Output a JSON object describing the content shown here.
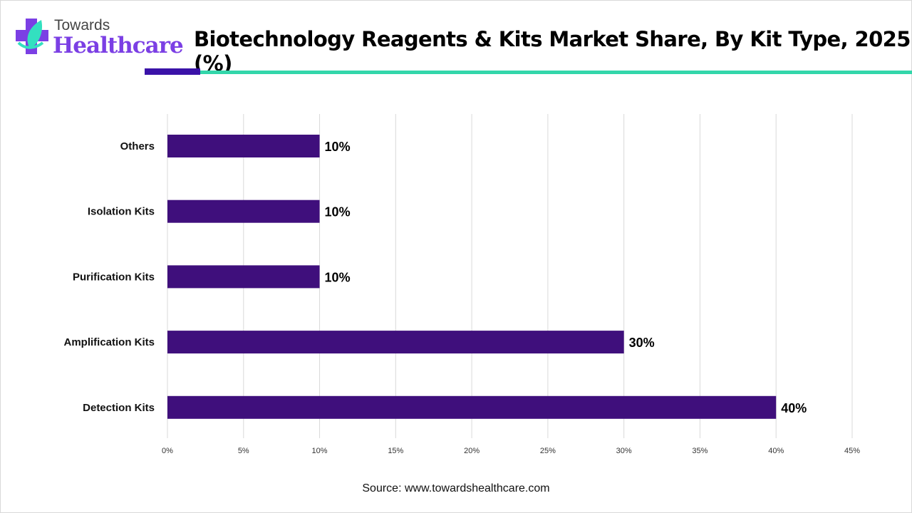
{
  "logo": {
    "line1": "Towards",
    "line2": "Healthcare"
  },
  "header": {
    "title": "Biotechnology Reagents & Kits Market Share, By Kit Type, 2025 (%)"
  },
  "source": "Source: www.towardshealthcare.com",
  "colors": {
    "bar": "#3f0f7c",
    "accent_dark": "#3a12a8",
    "accent_teal": "#33d6aa",
    "grid": "#d9d9d9"
  },
  "chart_data": {
    "type": "bar",
    "orientation": "horizontal",
    "title": "Biotechnology Reagents & Kits Market Share, By Kit Type, 2025 (%)",
    "categories": [
      "Others",
      "Isolation Kits",
      "Purification Kits",
      "Amplification Kits",
      "Detection Kits"
    ],
    "values": [
      10,
      10,
      10,
      30,
      40
    ],
    "data_labels": [
      "10%",
      "10%",
      "10%",
      "30%",
      "40%"
    ],
    "xlim": [
      0,
      45
    ],
    "xticks": [
      "0%",
      "5%",
      "10%",
      "15%",
      "20%",
      "25%",
      "30%",
      "35%",
      "40%",
      "45%"
    ],
    "grid": "vertical",
    "legend": "none"
  }
}
